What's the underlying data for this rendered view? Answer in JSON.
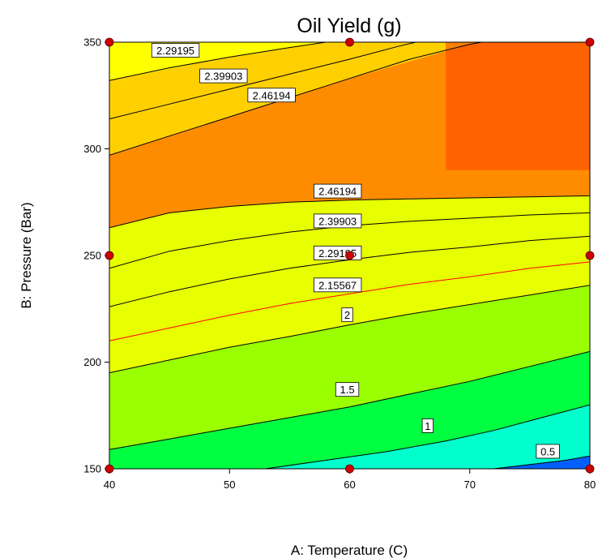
{
  "chart_data": {
    "type": "contour",
    "title": "Oil Yield (g)",
    "xlabel": "A: Temperature (C)",
    "ylabel": "B: Pressure (Bar)",
    "xlim": [
      40,
      80
    ],
    "ylim": [
      150,
      350
    ],
    "x_ticks": [
      "40",
      "50",
      "60",
      "70",
      "80"
    ],
    "y_ticks": [
      "150",
      "200",
      "250",
      "300",
      "350"
    ],
    "x_tick_values": [
      40,
      50,
      60,
      70,
      80
    ],
    "y_tick_values": [
      150,
      200,
      250,
      300,
      350
    ],
    "grid": false,
    "colormap": [
      "#0000ff",
      "#00ffff",
      "#00ff00",
      "#ffff00",
      "#ff8c00",
      "#ff4000"
    ],
    "design_points": [
      {
        "x": 40,
        "y": 150
      },
      {
        "x": 60,
        "y": 150
      },
      {
        "x": 80,
        "y": 150
      },
      {
        "x": 40,
        "y": 250
      },
      {
        "x": 60,
        "y": 250
      },
      {
        "x": 80,
        "y": 250
      },
      {
        "x": 40,
        "y": 350
      },
      {
        "x": 60,
        "y": 350
      },
      {
        "x": 80,
        "y": 350
      }
    ],
    "design_point_color": "#cc0000",
    "contours": [
      {
        "label": "2.29195",
        "color": "#000000",
        "label_at": {
          "x": 45.5,
          "y": 346
        },
        "points": [
          [
            40,
            332
          ],
          [
            45,
            338
          ],
          [
            50,
            343
          ],
          [
            55,
            347.5
          ],
          [
            58,
            350
          ]
        ]
      },
      {
        "label": "2.39903",
        "color": "#000000",
        "label_at": {
          "x": 49.5,
          "y": 334
        },
        "points": [
          [
            40,
            314
          ],
          [
            45,
            321
          ],
          [
            50,
            328
          ],
          [
            55,
            335
          ],
          [
            60,
            342
          ],
          [
            64,
            348
          ],
          [
            65.5,
            350
          ]
        ]
      },
      {
        "label": "2.46194",
        "color": "#000000",
        "label_at": {
          "x": 53.5,
          "y": 325
        },
        "points": [
          [
            40,
            297
          ],
          [
            45,
            306
          ],
          [
            50,
            315
          ],
          [
            55,
            324
          ],
          [
            60,
            333
          ],
          [
            65,
            342
          ],
          [
            70,
            349
          ],
          [
            71,
            350
          ]
        ]
      },
      {
        "label": "2.46194",
        "color": "#000000",
        "label_at": {
          "x": 59,
          "y": 280
        },
        "points": [
          [
            40,
            263
          ],
          [
            45,
            270
          ],
          [
            50,
            273
          ],
          [
            55,
            275
          ],
          [
            60,
            276
          ],
          [
            65,
            276.5
          ],
          [
            70,
            277
          ],
          [
            75,
            277.5
          ],
          [
            80,
            278
          ]
        ]
      },
      {
        "label": "2.39903",
        "color": "#000000",
        "label_at": {
          "x": 59,
          "y": 266
        },
        "points": [
          [
            40,
            244
          ],
          [
            45,
            252
          ],
          [
            50,
            257
          ],
          [
            55,
            261
          ],
          [
            60,
            264
          ],
          [
            65,
            266
          ],
          [
            70,
            267.5
          ],
          [
            75,
            269
          ],
          [
            80,
            270
          ]
        ]
      },
      {
        "label": "2.29195",
        "color": "#000000",
        "label_at": {
          "x": 59,
          "y": 251
        },
        "points": [
          [
            40,
            226
          ],
          [
            45,
            233
          ],
          [
            50,
            239
          ],
          [
            55,
            244
          ],
          [
            60,
            248
          ],
          [
            65,
            251.5
          ],
          [
            70,
            254
          ],
          [
            75,
            257
          ],
          [
            80,
            259
          ]
        ]
      },
      {
        "label": "2.15567",
        "color": "#ff0000",
        "label_at": {
          "x": 59,
          "y": 236
        },
        "points": [
          [
            40,
            210
          ],
          [
            45,
            216
          ],
          [
            50,
            222
          ],
          [
            55,
            227.5
          ],
          [
            60,
            232
          ],
          [
            65,
            236.5
          ],
          [
            70,
            240
          ],
          [
            75,
            244
          ],
          [
            80,
            247
          ]
        ]
      },
      {
        "label": "2",
        "color": "#000000",
        "label_at": {
          "x": 59.8,
          "y": 222
        },
        "points": [
          [
            40,
            195
          ],
          [
            45,
            201
          ],
          [
            50,
            207
          ],
          [
            55,
            212
          ],
          [
            60,
            217.5
          ],
          [
            65,
            222.5
          ],
          [
            70,
            227
          ],
          [
            75,
            231.5
          ],
          [
            80,
            236
          ]
        ]
      },
      {
        "label": "1.5",
        "color": "#000000",
        "label_at": {
          "x": 59.8,
          "y": 187
        },
        "points": [
          [
            40,
            159
          ],
          [
            45,
            164
          ],
          [
            50,
            169
          ],
          [
            55,
            174
          ],
          [
            60,
            179
          ],
          [
            65,
            185
          ],
          [
            70,
            191
          ],
          [
            75,
            198
          ],
          [
            80,
            205
          ]
        ]
      },
      {
        "label": "1",
        "color": "#000000",
        "label_at": {
          "x": 66.5,
          "y": 170
        },
        "points": [
          [
            53,
            150
          ],
          [
            58,
            154
          ],
          [
            63,
            158
          ],
          [
            68,
            163
          ],
          [
            72,
            168
          ],
          [
            76,
            174
          ],
          [
            80,
            180
          ]
        ]
      },
      {
        "label": "0.5",
        "color": "#000000",
        "label_at": {
          "x": 76.5,
          "y": 158
        },
        "points": [
          [
            72,
            150
          ],
          [
            75,
            152
          ],
          [
            78,
            154
          ],
          [
            80,
            156
          ]
        ]
      }
    ]
  }
}
